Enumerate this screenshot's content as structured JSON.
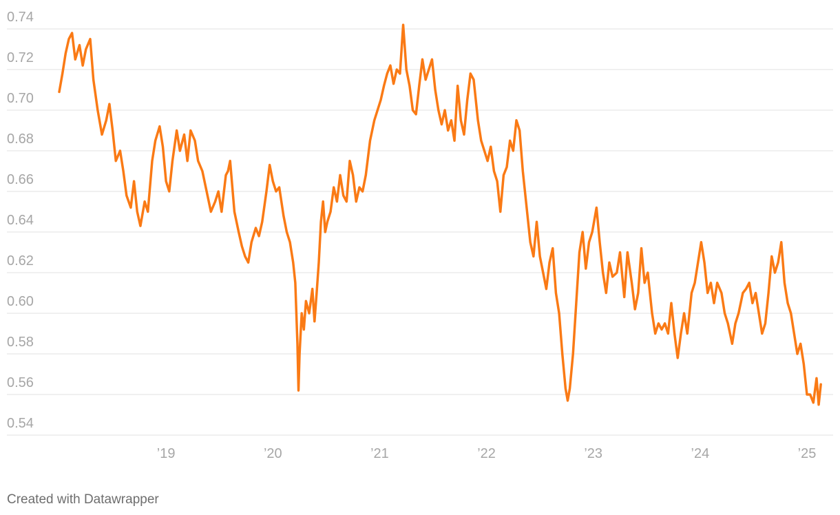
{
  "chart_data": {
    "type": "line",
    "x": [
      2018.0,
      2018.03,
      2018.06,
      2018.09,
      2018.12,
      2018.15,
      2018.19,
      2018.22,
      2018.25,
      2018.29,
      2018.32,
      2018.36,
      2018.4,
      2018.44,
      2018.47,
      2018.5,
      2018.53,
      2018.57,
      2018.6,
      2018.63,
      2018.67,
      2018.7,
      2018.73,
      2018.76,
      2018.8,
      2018.83,
      2018.87,
      2018.9,
      2018.94,
      2018.97,
      2019.0,
      2019.03,
      2019.06,
      2019.1,
      2019.13,
      2019.17,
      2019.2,
      2019.23,
      2019.27,
      2019.3,
      2019.34,
      2019.38,
      2019.42,
      2019.46,
      2019.49,
      2019.52,
      2019.56,
      2019.58,
      2019.6,
      2019.64,
      2019.68,
      2019.71,
      2019.74,
      2019.77,
      2019.8,
      2019.84,
      2019.87,
      2019.9,
      2019.94,
      2019.97,
      2020.0,
      2020.03,
      2020.06,
      2020.1,
      2020.13,
      2020.16,
      2020.19,
      2020.21,
      2020.23,
      2020.24,
      2020.25,
      2020.27,
      2020.29,
      2020.31,
      2020.34,
      2020.37,
      2020.39,
      2020.41,
      2020.43,
      2020.45,
      2020.47,
      2020.49,
      2020.51,
      2020.54,
      2020.57,
      2020.6,
      2020.63,
      2020.66,
      2020.69,
      2020.72,
      2020.75,
      2020.78,
      2020.81,
      2020.84,
      2020.87,
      2020.91,
      2020.95,
      2020.98,
      2021.01,
      2021.04,
      2021.07,
      2021.1,
      2021.13,
      2021.16,
      2021.19,
      2021.22,
      2021.25,
      2021.28,
      2021.31,
      2021.34,
      2021.37,
      2021.4,
      2021.43,
      2021.46,
      2021.49,
      2021.52,
      2021.55,
      2021.58,
      2021.61,
      2021.64,
      2021.67,
      2021.7,
      2021.73,
      2021.76,
      2021.79,
      2021.82,
      2021.85,
      2021.88,
      2021.92,
      2021.95,
      2021.98,
      2022.01,
      2022.04,
      2022.07,
      2022.1,
      2022.13,
      2022.16,
      2022.19,
      2022.22,
      2022.25,
      2022.28,
      2022.31,
      2022.34,
      2022.38,
      2022.41,
      2022.44,
      2022.47,
      2022.5,
      2022.53,
      2022.56,
      2022.59,
      2022.62,
      2022.65,
      2022.68,
      2022.71,
      2022.74,
      2022.76,
      2022.78,
      2022.81,
      2022.84,
      2022.87,
      2022.9,
      2022.93,
      2022.96,
      2022.99,
      2023.03,
      2023.06,
      2023.09,
      2023.12,
      2023.15,
      2023.18,
      2023.22,
      2023.25,
      2023.29,
      2023.32,
      2023.36,
      2023.39,
      2023.42,
      2023.45,
      2023.48,
      2023.51,
      2023.55,
      2023.58,
      2023.61,
      2023.64,
      2023.67,
      2023.7,
      2023.73,
      2023.76,
      2023.79,
      2023.82,
      2023.85,
      2023.88,
      2023.92,
      2023.95,
      2023.98,
      2024.01,
      2024.04,
      2024.07,
      2024.1,
      2024.13,
      2024.16,
      2024.2,
      2024.23,
      2024.26,
      2024.3,
      2024.33,
      2024.36,
      2024.4,
      2024.43,
      2024.46,
      2024.49,
      2024.52,
      2024.55,
      2024.58,
      2024.61,
      2024.64,
      2024.67,
      2024.7,
      2024.73,
      2024.76,
      2024.79,
      2024.82,
      2024.85,
      2024.88,
      2024.91,
      2024.94,
      2024.97,
      2025.0,
      2025.03,
      2025.06,
      2025.09,
      2025.11,
      2025.13
    ],
    "values": [
      0.709,
      0.718,
      0.728,
      0.735,
      0.738,
      0.725,
      0.732,
      0.722,
      0.73,
      0.735,
      0.715,
      0.7,
      0.688,
      0.695,
      0.703,
      0.69,
      0.675,
      0.68,
      0.67,
      0.658,
      0.652,
      0.665,
      0.65,
      0.643,
      0.655,
      0.65,
      0.675,
      0.685,
      0.692,
      0.682,
      0.665,
      0.66,
      0.675,
      0.69,
      0.68,
      0.688,
      0.675,
      0.69,
      0.685,
      0.675,
      0.67,
      0.66,
      0.65,
      0.655,
      0.66,
      0.65,
      0.668,
      0.67,
      0.675,
      0.65,
      0.64,
      0.633,
      0.628,
      0.625,
      0.635,
      0.642,
      0.638,
      0.645,
      0.66,
      0.673,
      0.665,
      0.66,
      0.662,
      0.648,
      0.64,
      0.635,
      0.625,
      0.615,
      0.585,
      0.562,
      0.58,
      0.6,
      0.592,
      0.606,
      0.6,
      0.612,
      0.596,
      0.61,
      0.625,
      0.645,
      0.655,
      0.64,
      0.645,
      0.65,
      0.662,
      0.655,
      0.668,
      0.658,
      0.655,
      0.675,
      0.668,
      0.655,
      0.662,
      0.66,
      0.668,
      0.685,
      0.695,
      0.7,
      0.705,
      0.712,
      0.718,
      0.722,
      0.713,
      0.72,
      0.718,
      0.742,
      0.72,
      0.712,
      0.7,
      0.698,
      0.712,
      0.725,
      0.715,
      0.72,
      0.725,
      0.71,
      0.7,
      0.693,
      0.7,
      0.69,
      0.695,
      0.685,
      0.712,
      0.695,
      0.688,
      0.705,
      0.718,
      0.715,
      0.695,
      0.685,
      0.68,
      0.675,
      0.682,
      0.67,
      0.665,
      0.65,
      0.668,
      0.672,
      0.685,
      0.68,
      0.695,
      0.69,
      0.67,
      0.65,
      0.635,
      0.628,
      0.645,
      0.628,
      0.62,
      0.612,
      0.625,
      0.632,
      0.61,
      0.6,
      0.58,
      0.563,
      0.557,
      0.563,
      0.58,
      0.605,
      0.63,
      0.64,
      0.622,
      0.635,
      0.64,
      0.652,
      0.635,
      0.62,
      0.61,
      0.625,
      0.618,
      0.62,
      0.63,
      0.608,
      0.63,
      0.615,
      0.602,
      0.61,
      0.632,
      0.615,
      0.62,
      0.6,
      0.59,
      0.595,
      0.592,
      0.595,
      0.59,
      0.605,
      0.59,
      0.578,
      0.59,
      0.6,
      0.59,
      0.61,
      0.615,
      0.625,
      0.635,
      0.625,
      0.61,
      0.615,
      0.605,
      0.615,
      0.61,
      0.6,
      0.595,
      0.585,
      0.595,
      0.6,
      0.61,
      0.612,
      0.615,
      0.605,
      0.61,
      0.6,
      0.59,
      0.595,
      0.61,
      0.628,
      0.62,
      0.625,
      0.635,
      0.615,
      0.605,
      0.6,
      0.59,
      0.58,
      0.585,
      0.575,
      0.56,
      0.56,
      0.556,
      0.568,
      0.555,
      0.565
    ],
    "color": "#fa7a15",
    "xlim": [
      2017.51,
      2025.245
    ],
    "xticks": [
      {
        "value": 2019,
        "label": "’19"
      },
      {
        "value": 2020,
        "label": "’20"
      },
      {
        "value": 2021,
        "label": "’21"
      },
      {
        "value": 2022,
        "label": "’22"
      },
      {
        "value": 2023,
        "label": "’23"
      },
      {
        "value": 2024,
        "label": "’24"
      },
      {
        "value": 2025,
        "label": "’25"
      }
    ],
    "ylim": [
      0.54,
      0.74
    ],
    "yticks": [
      0.54,
      0.56,
      0.58,
      {
        "value": 0.6,
        "label": "0.60"
      },
      0.62,
      0.64,
      0.66,
      0.68,
      {
        "value": 0.7,
        "label": "0.70"
      },
      0.72,
      0.74
    ],
    "grid": true
  },
  "footer": {
    "credit": "Created with Datawrapper"
  }
}
